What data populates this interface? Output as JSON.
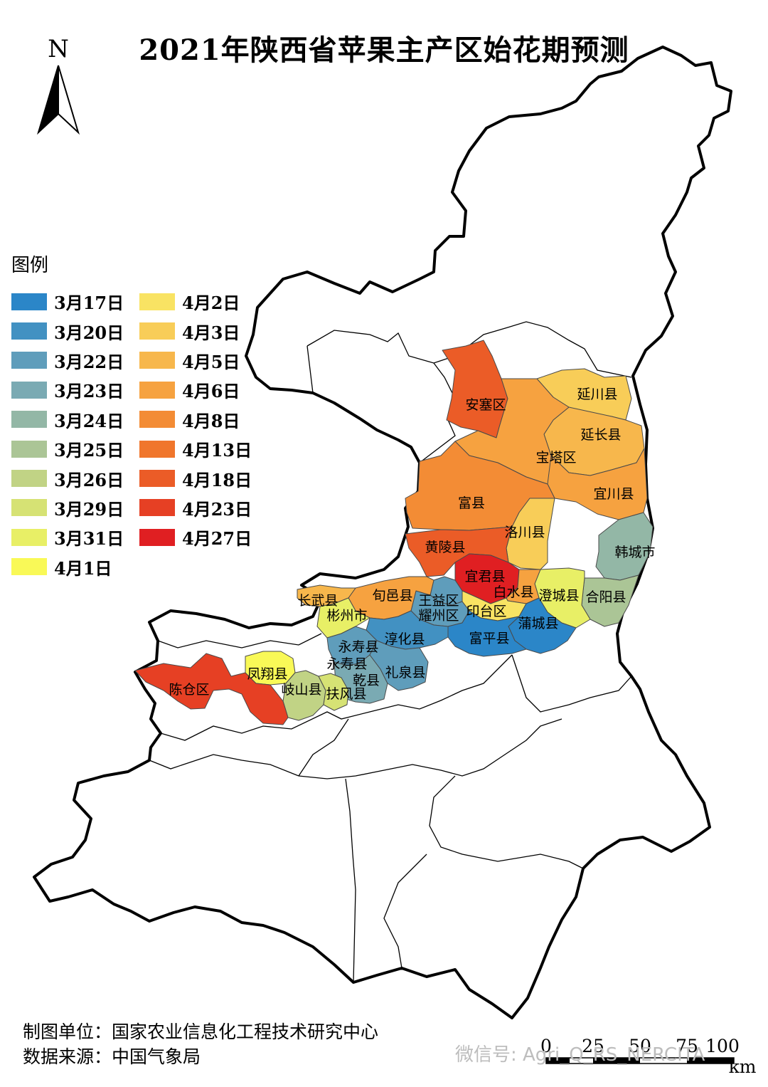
{
  "title": "2021年陕西省苹果主产区始花期预测",
  "north_label": "N",
  "legend": {
    "title": "图例",
    "left_column": [
      {
        "label": "3月17日",
        "color": "#2b86c8"
      },
      {
        "label": "3月20日",
        "color": "#4291c2"
      },
      {
        "label": "3月22日",
        "color": "#5f9dbb"
      },
      {
        "label": "3月23日",
        "color": "#7aaab3"
      },
      {
        "label": "3月24日",
        "color": "#93b7a6"
      },
      {
        "label": "3月25日",
        "color": "#abc596"
      },
      {
        "label": "3月26日",
        "color": "#c1d385"
      },
      {
        "label": "3月29日",
        "color": "#d6e274"
      },
      {
        "label": "3月31日",
        "color": "#e8ef66"
      },
      {
        "label": "4月1日",
        "color": "#f9f957"
      }
    ],
    "right_column": [
      {
        "label": "4月2日",
        "color": "#f9e363"
      },
      {
        "label": "4月3日",
        "color": "#f8cd58"
      },
      {
        "label": "4月5日",
        "color": "#f7b74c"
      },
      {
        "label": "4月6日",
        "color": "#f6a240"
      },
      {
        "label": "4月8日",
        "color": "#f38c35"
      },
      {
        "label": "4月13日",
        "color": "#f0762c"
      },
      {
        "label": "4月18日",
        "color": "#eb5c27"
      },
      {
        "label": "4月23日",
        "color": "#e64024"
      },
      {
        "label": "4月27日",
        "color": "#e01f22"
      }
    ]
  },
  "regions": [
    {
      "name": "安塞区",
      "date": "4月18日",
      "color": "#eb5c27"
    },
    {
      "name": "延川县",
      "date": "4月3日",
      "color": "#f8cd58"
    },
    {
      "name": "延长县",
      "date": "4月5日",
      "color": "#f7b74c"
    },
    {
      "name": "宝塔区",
      "date": "4月6日",
      "color": "#f6a240"
    },
    {
      "name": "宜川县",
      "date": "4月6日",
      "color": "#f6a240"
    },
    {
      "name": "富县",
      "date": "4月8日",
      "color": "#f38c35"
    },
    {
      "name": "洛川县",
      "date": "4月3日",
      "color": "#f8cd58"
    },
    {
      "name": "黄陵县",
      "date": "4月18日",
      "color": "#eb5c27"
    },
    {
      "name": "宜君县",
      "date": "4月27日",
      "color": "#e01f22"
    },
    {
      "name": "韩城市",
      "date": "3月24日",
      "color": "#93b7a6"
    },
    {
      "name": "合阳县",
      "date": "3月25日",
      "color": "#abc596"
    },
    {
      "name": "澄城县",
      "date": "3月31日",
      "color": "#e8ef66"
    },
    {
      "name": "白水县",
      "date": "4月6日",
      "color": "#f6a240"
    },
    {
      "name": "印台区",
      "date": "4月2日",
      "color": "#f9e363"
    },
    {
      "name": "王益区",
      "date": "3月22日",
      "color": "#5f9dbb"
    },
    {
      "name": "耀州区",
      "date": "3月22日",
      "color": "#5f9dbb"
    },
    {
      "name": "蒲城县",
      "date": "3月17日",
      "color": "#2b86c8"
    },
    {
      "name": "富平县",
      "date": "3月17日",
      "color": "#2b86c8"
    },
    {
      "name": "旬邑县",
      "date": "4月6日",
      "color": "#f6a240"
    },
    {
      "name": "长武县",
      "date": "4月5日",
      "color": "#f7b74c"
    },
    {
      "name": "彬州市",
      "date": "3月31日",
      "color": "#e8ef66"
    },
    {
      "name": "淳化县",
      "date": "3月20日",
      "color": "#4291c2"
    },
    {
      "name": "永寿县",
      "date": "3月22日",
      "color": "#5f9dbb"
    },
    {
      "name": "乾县",
      "date": "3月23日",
      "color": "#7aaab3"
    },
    {
      "name": "礼泉县",
      "date": "3月22日",
      "color": "#5f9dbb"
    },
    {
      "name": "凤翔县",
      "date": "4月1日",
      "color": "#f9f957"
    },
    {
      "name": "岐山县",
      "date": "3月26日",
      "color": "#c1d385"
    },
    {
      "name": "扶风县",
      "date": "3月29日",
      "color": "#d6e274"
    },
    {
      "name": "陈仓区",
      "date": "4月23日",
      "color": "#e64024"
    }
  ],
  "credits": {
    "unit": "制图单位：国家农业信息化工程技术研究中心",
    "source": "数据来源：中国气象局"
  },
  "scale_bar": {
    "ticks": [
      "0",
      "25",
      "50",
      "75",
      "100"
    ],
    "unit": "km"
  },
  "watermark": "微信号: Agri_Q_RS_NERCITA"
}
